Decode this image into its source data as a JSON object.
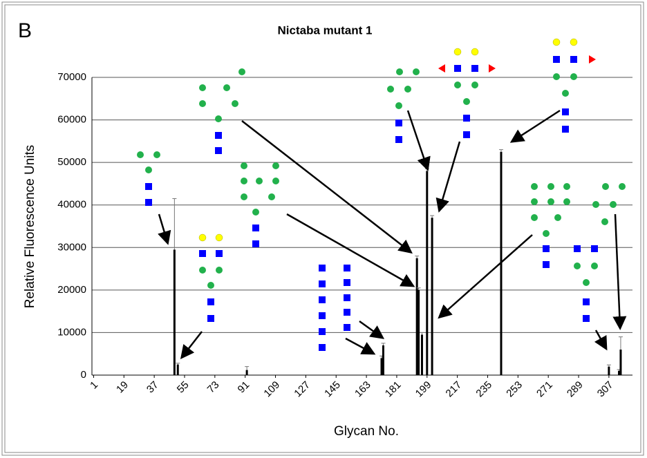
{
  "chart_data": {
    "type": "bar",
    "panel_label": "B",
    "title": "Nictaba mutant 1",
    "x_label": "Glycan No.",
    "y_label": "Relative Fluorescence Units",
    "x": [
      49,
      51,
      92,
      172,
      173,
      193,
      194,
      196,
      199,
      202,
      243,
      307,
      313,
      314
    ],
    "values": [
      29500,
      2500,
      1200,
      4000,
      7000,
      27500,
      20000,
      9500,
      48000,
      37000,
      52500,
      2000,
      1000,
      6000
    ],
    "errors": [
      12000,
      300,
      800,
      500,
      500,
      500,
      500,
      500,
      500,
      500,
      500,
      400,
      300,
      3000
    ],
    "color": "#000000",
    "xlim": [
      0,
      321
    ],
    "xticks": [
      1,
      19,
      37,
      55,
      73,
      91,
      109,
      127,
      145,
      163,
      181,
      199,
      217,
      235,
      253,
      271,
      289,
      307
    ],
    "ylim": [
      0,
      70000
    ],
    "yticks": [
      0,
      10000,
      20000,
      30000,
      40000,
      50000,
      60000,
      70000
    ],
    "grid": true
  }
}
